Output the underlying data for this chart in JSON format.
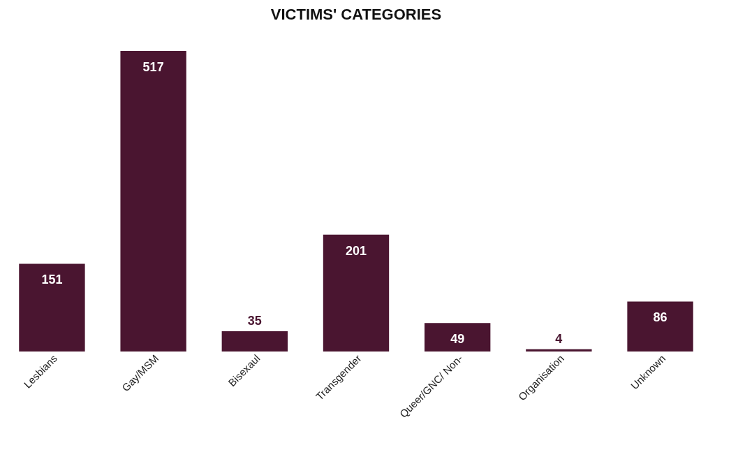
{
  "chart_data": {
    "type": "bar",
    "title": "VICTIMS' CATEGORIES",
    "categories": [
      "Lesbians",
      "Gay/MSM",
      "Bisexaul",
      "Transgender",
      "Queer/GNC/ Non-",
      "Organisation",
      "Unknown"
    ],
    "values": [
      151,
      517,
      35,
      201,
      49,
      4,
      86
    ],
    "color": "#4a1530",
    "data_labels": true,
    "tick_labels": "x",
    "grid": false
  }
}
